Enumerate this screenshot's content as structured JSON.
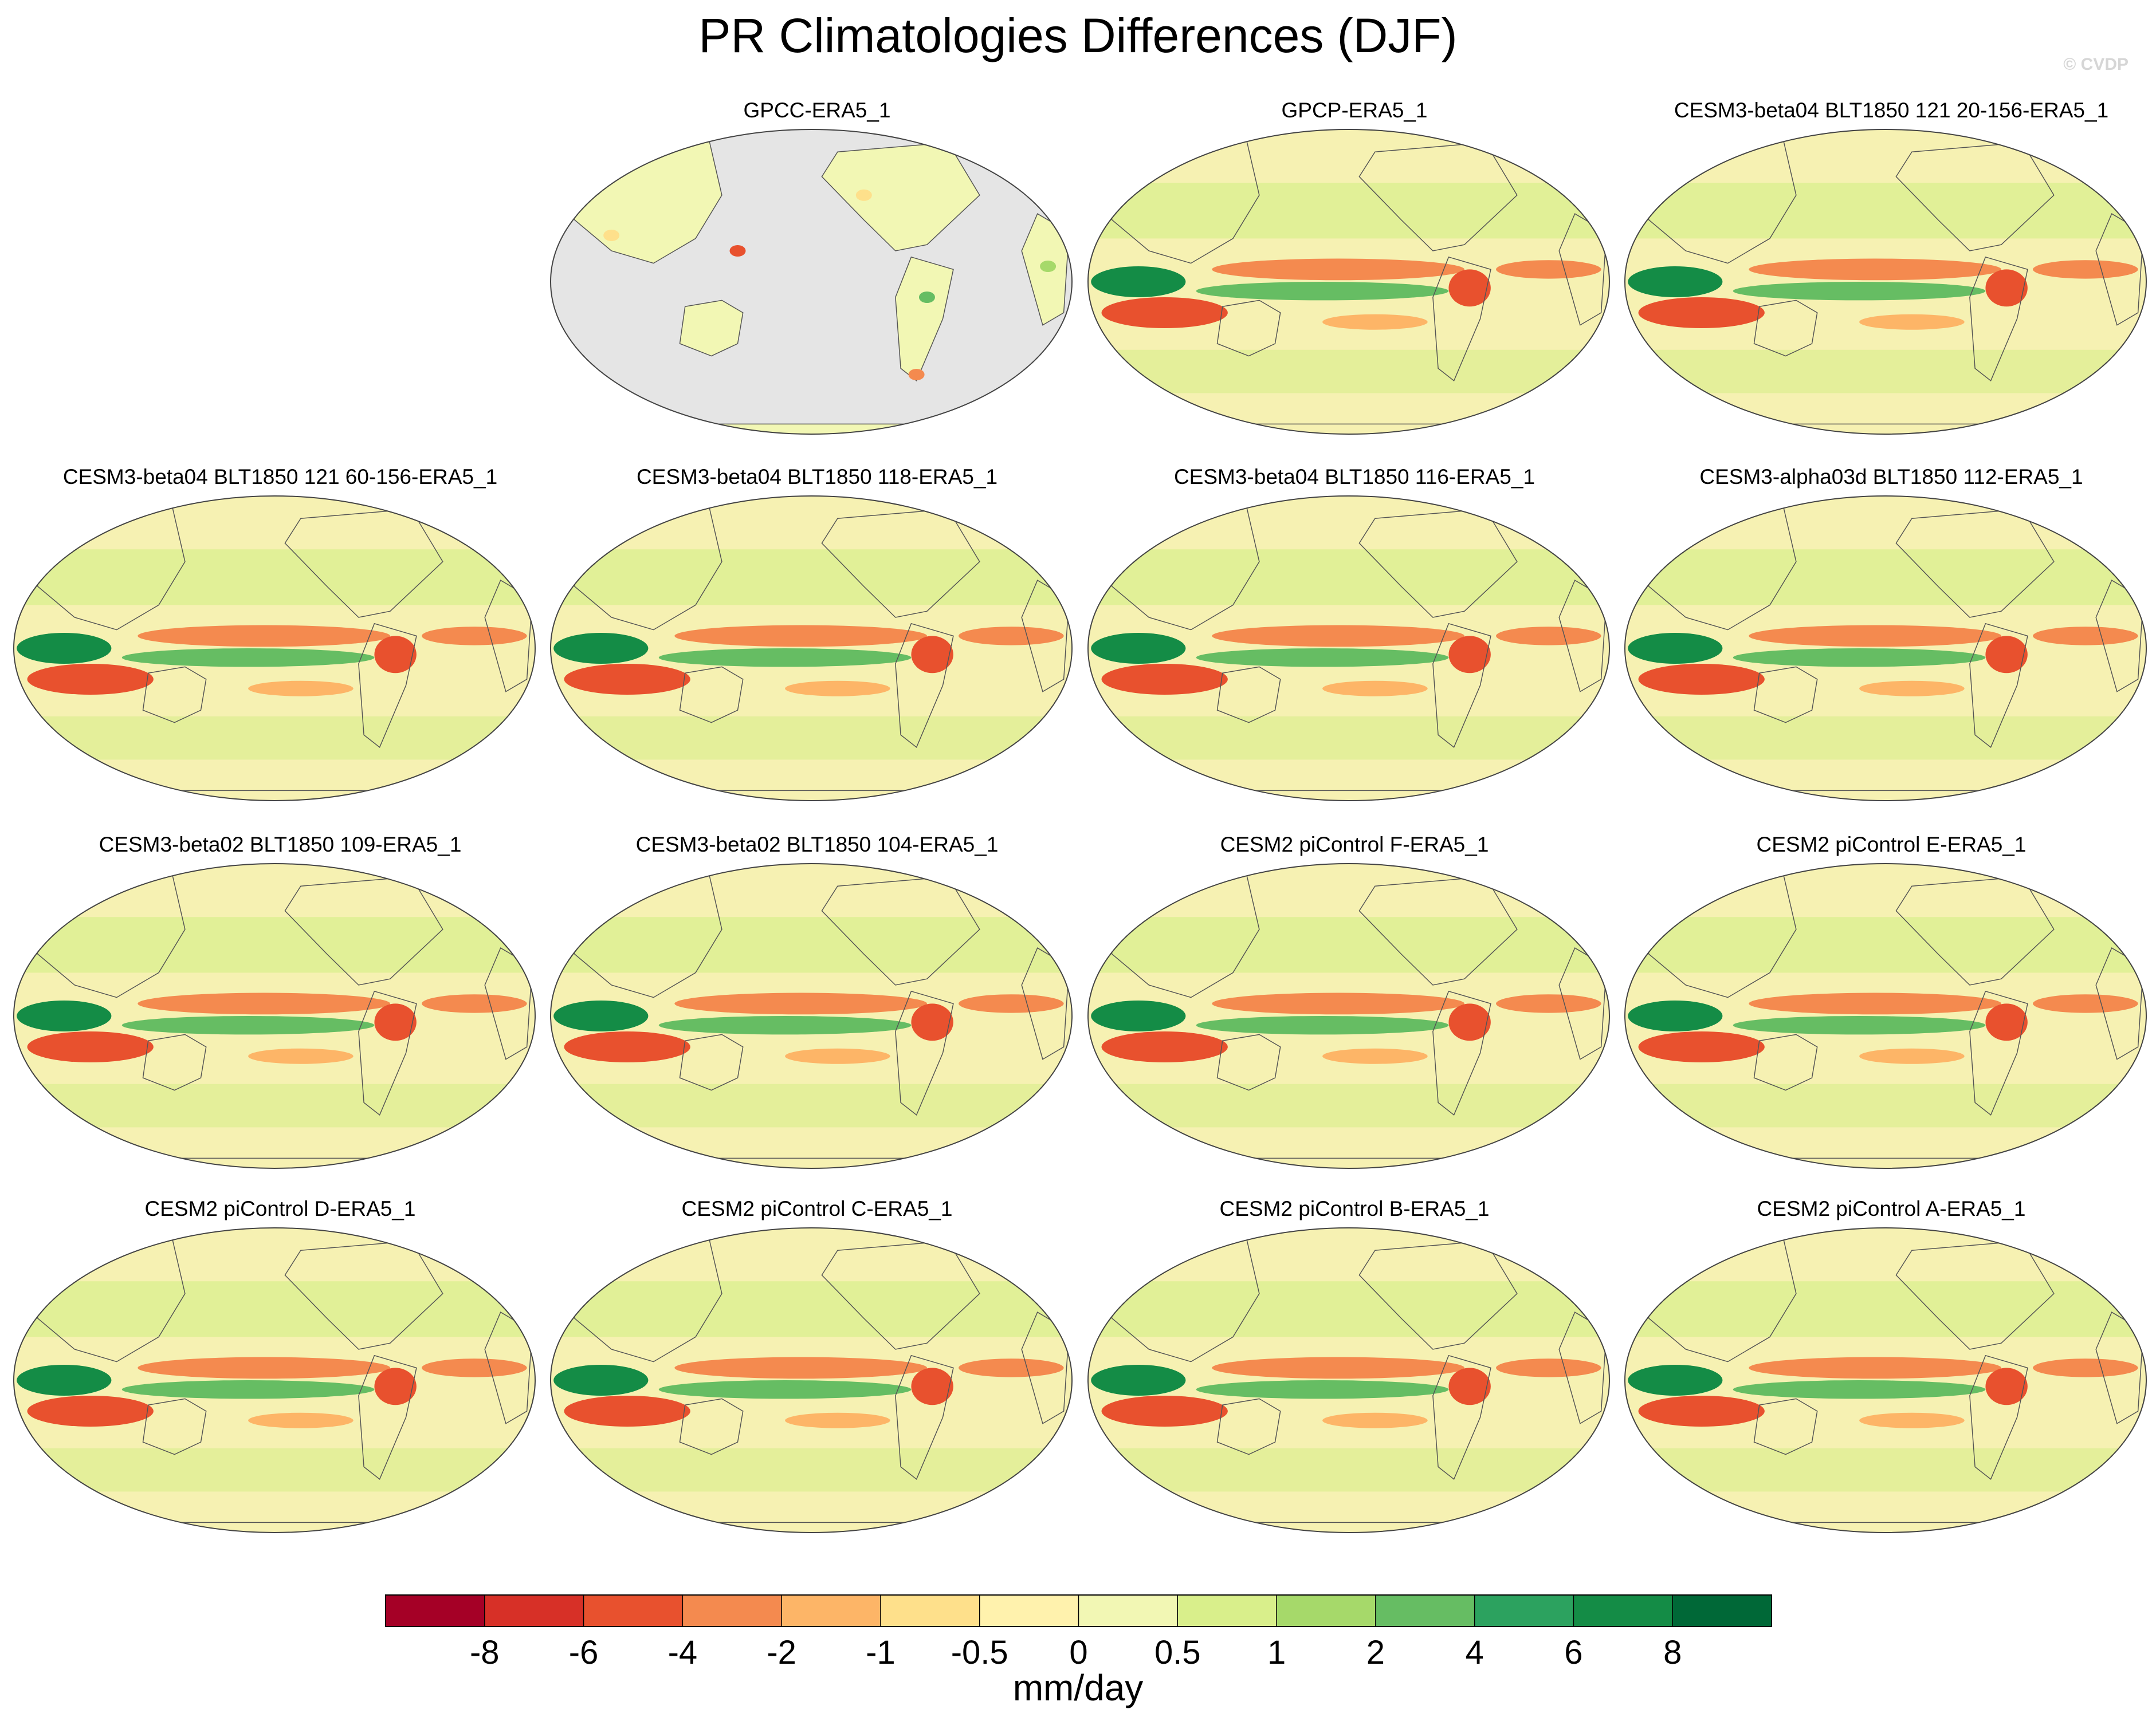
{
  "title": "PR Climatologies Differences (DJF)",
  "watermark": "© CVDP",
  "panels": [
    {
      "name": "GPCC-ERA5_1",
      "land_only": true
    },
    {
      "name": "GPCP-ERA5_1",
      "land_only": false
    },
    {
      "name": "CESM3-beta04 BLT1850 121 20-156-ERA5_1",
      "land_only": false
    },
    {
      "name": "CESM3-beta04 BLT1850 121 60-156-ERA5_1",
      "land_only": false
    },
    {
      "name": "CESM3-beta04 BLT1850 118-ERA5_1",
      "land_only": false
    },
    {
      "name": "CESM3-beta04 BLT1850 116-ERA5_1",
      "land_only": false
    },
    {
      "name": "CESM3-alpha03d BLT1850 112-ERA5_1",
      "land_only": false
    },
    {
      "name": "CESM3-beta02 BLT1850 109-ERA5_1",
      "land_only": false
    },
    {
      "name": "CESM3-beta02 BLT1850 104-ERA5_1",
      "land_only": false
    },
    {
      "name": "CESM2 piControl F-ERA5_1",
      "land_only": false
    },
    {
      "name": "CESM2 piControl E-ERA5_1",
      "land_only": false
    },
    {
      "name": "CESM2 piControl D-ERA5_1",
      "land_only": false
    },
    {
      "name": "CESM2 piControl C-ERA5_1",
      "land_only": false
    },
    {
      "name": "CESM2 piControl B-ERA5_1",
      "land_only": false
    },
    {
      "name": "CESM2 piControl A-ERA5_1",
      "land_only": false
    }
  ],
  "colorbar": {
    "title": "mm/day",
    "tick_labels": [
      "-8",
      "-6",
      "-4",
      "-2",
      "-1",
      "-0.5",
      "0",
      "0.5",
      "1",
      "2",
      "4",
      "6",
      "8"
    ],
    "colors": [
      "#a50026",
      "#d73027",
      "#e8512e",
      "#f48a4f",
      "#fdb567",
      "#fee08b",
      "#fff2ad",
      "#f2f7b4",
      "#d9ef8b",
      "#a6d96a",
      "#66bd63",
      "#2ca25f",
      "#148c46",
      "#006837"
    ]
  },
  "colors": {
    "land_mask": "#e5e5e5",
    "near_zero": "#f6f1b2",
    "coastline": "#555555"
  }
}
